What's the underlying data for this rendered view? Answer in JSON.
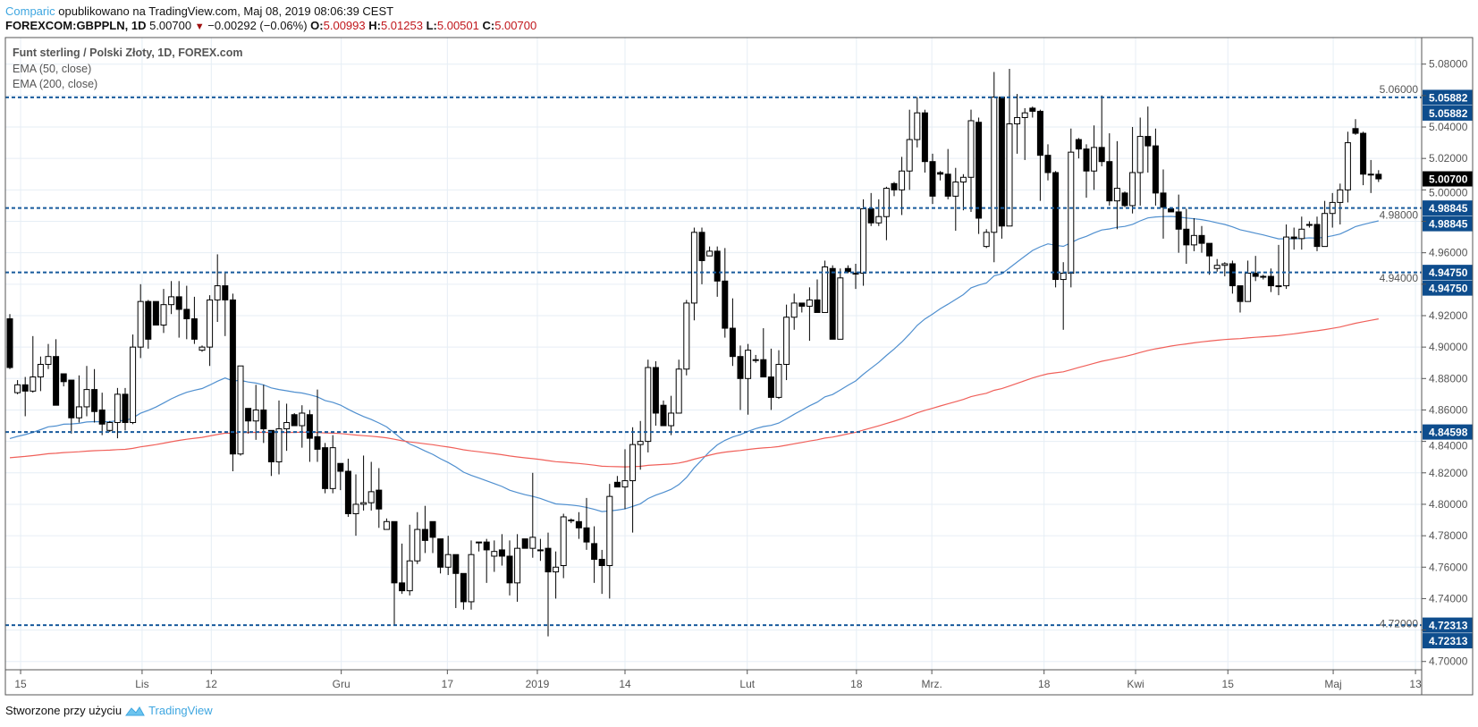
{
  "header": {
    "author": "Comparic",
    "published": "opublikowano na TradingView.com, Maj 08, 2019 08:06:39 CEST",
    "symbol": "FOREXCOM:GBPPLN, 1D",
    "last": "5.00700",
    "change": "−0.00292 (−0.06%)",
    "o_label": "O:",
    "o": "5.00993",
    "h_label": "H:",
    "h": "5.01253",
    "l_label": "L:",
    "l": "5.00501",
    "c_label": "C:",
    "c": "5.00700",
    "down_icon": "triangle-down-icon"
  },
  "legend": {
    "title": "Funt sterling / Polski Złoty, 1D, FOREX.com",
    "ema50": "EMA (50, close)",
    "ema200": "EMA (200, close)"
  },
  "footer": {
    "text": "Stworzone przy użyciu",
    "brand": "TradingView",
    "logo_icon": "tradingview-logo-icon"
  },
  "colors": {
    "level": "#175a9c",
    "level_label": "#0e4d8d",
    "ema50": "#4f8fcf",
    "ema200": "#f0605a",
    "grid": "#e6eef5",
    "brand": "#3ea6e0",
    "down": "#c0161b"
  },
  "chart_data": {
    "type": "candlestick",
    "title": "Funt sterling / Polski Złoty, 1D, FOREX.com",
    "ylim": [
      4.7,
      5.08
    ],
    "y_ticks": [
      "5.08000",
      "5.06000",
      "5.04000",
      "5.02000",
      "5.00000",
      "4.98000",
      "4.96000",
      "4.94000",
      "4.92000",
      "4.90000",
      "4.88000",
      "4.86000",
      "4.84000",
      "4.82000",
      "4.80000",
      "4.78000",
      "4.76000",
      "4.74000",
      "4.72000",
      "4.70000"
    ],
    "x_ticks": [
      {
        "label": "15",
        "index": 1.4
      },
      {
        "label": "Lis",
        "index": 17.2
      },
      {
        "label": "12",
        "index": 26.2
      },
      {
        "label": "Gru",
        "index": 43.1
      },
      {
        "label": "17",
        "index": 56.9
      },
      {
        "label": "2019",
        "index": 68.6
      },
      {
        "label": "14",
        "index": 80
      },
      {
        "label": "Lut",
        "index": 95.9
      },
      {
        "label": "18",
        "index": 110.1
      },
      {
        "label": "Mrz.",
        "index": 119.9
      },
      {
        "label": "18",
        "index": 134.5
      },
      {
        "label": "Kwi",
        "index": 146.4
      },
      {
        "label": "15",
        "index": 158.4
      },
      {
        "label": "Maj",
        "index": 172.1
      },
      {
        "label": "13",
        "index": 182.8
      }
    ],
    "levels": [
      {
        "value": 5.05882,
        "label": "5.05882",
        "labels": 2
      },
      {
        "value": 4.98845,
        "label": "4.98845",
        "labels": 2
      },
      {
        "value": 4.9475,
        "label": "4.94750",
        "labels": 2
      },
      {
        "value": 4.84598,
        "label": "4.84598",
        "labels": 1
      },
      {
        "value": 4.72313,
        "label": "4.72313",
        "labels": 2
      }
    ],
    "current_price": {
      "value": 5.007,
      "label": "5.00700"
    },
    "ema": [
      {
        "name": "EMA (50, close)",
        "period": 50,
        "start": 4.84
      },
      {
        "name": "EMA (200, close)",
        "period": 200,
        "start": 4.829
      }
    ],
    "ohlc": [
      [
        4.918,
        4.921,
        4.886,
        4.887
      ],
      [
        4.871,
        4.879,
        4.87,
        4.876
      ],
      [
        4.876,
        4.881,
        4.856,
        4.872
      ],
      [
        4.872,
        4.907,
        4.871,
        4.881
      ],
      [
        4.881,
        4.894,
        4.872,
        4.889
      ],
      [
        4.889,
        4.902,
        4.886,
        4.894
      ],
      [
        4.894,
        4.905,
        4.863,
        4.863
      ],
      [
        4.883,
        4.883,
        4.875,
        4.878
      ],
      [
        4.879,
        4.879,
        4.845,
        4.855
      ],
      [
        4.855,
        4.882,
        4.852,
        4.862
      ],
      [
        4.862,
        4.888,
        4.856,
        4.873
      ],
      [
        4.873,
        4.886,
        4.852,
        4.859
      ],
      [
        4.86,
        4.871,
        4.844,
        4.851
      ],
      [
        4.847,
        4.853,
        4.846,
        4.852
      ],
      [
        4.852,
        4.874,
        4.842,
        4.87
      ],
      [
        4.87,
        4.874,
        4.847,
        4.852
      ],
      [
        4.852,
        4.908,
        4.851,
        4.9
      ],
      [
        4.9,
        4.94,
        4.893,
        4.929
      ],
      [
        4.929,
        4.93,
        4.899,
        4.905
      ],
      [
        4.929,
        4.929,
        4.914,
        4.914
      ],
      [
        4.914,
        4.937,
        4.909,
        4.927
      ],
      [
        4.927,
        4.942,
        4.921,
        4.932
      ],
      [
        4.932,
        4.942,
        4.906,
        4.924
      ],
      [
        4.924,
        4.939,
        4.905,
        4.918
      ],
      [
        4.918,
        4.932,
        4.902,
        4.905
      ],
      [
        4.898,
        4.901,
        4.897,
        4.9
      ],
      [
        4.9,
        4.933,
        4.888,
        4.93
      ],
      [
        4.93,
        4.959,
        4.916,
        4.939
      ],
      [
        4.939,
        4.948,
        4.907,
        4.93
      ],
      [
        4.93,
        4.934,
        4.821,
        4.832
      ],
      [
        4.832,
        4.888,
        4.831,
        4.888
      ],
      [
        4.861,
        4.861,
        4.845,
        4.853
      ],
      [
        4.853,
        4.876,
        4.841,
        4.86
      ],
      [
        4.86,
        4.876,
        4.839,
        4.848
      ],
      [
        4.847,
        4.847,
        4.818,
        4.827
      ],
      [
        4.827,
        4.866,
        4.819,
        4.848
      ],
      [
        4.848,
        4.864,
        4.834,
        4.852
      ],
      [
        4.857,
        4.858,
        4.85,
        4.85
      ],
      [
        4.85,
        4.863,
        4.836,
        4.858
      ],
      [
        4.857,
        4.86,
        4.827,
        4.842
      ],
      [
        4.843,
        4.873,
        4.827,
        4.835
      ],
      [
        4.836,
        4.839,
        4.807,
        4.81
      ],
      [
        4.81,
        4.844,
        4.807,
        4.836
      ],
      [
        4.826,
        4.826,
        4.809,
        4.821
      ],
      [
        4.821,
        4.829,
        4.792,
        4.794
      ],
      [
        4.794,
        4.819,
        4.78,
        4.8
      ],
      [
        4.8,
        4.831,
        4.796,
        4.801
      ],
      [
        4.801,
        4.827,
        4.796,
        4.808
      ],
      [
        4.809,
        4.823,
        4.785,
        4.797
      ],
      [
        4.784,
        4.791,
        4.784,
        4.789
      ],
      [
        4.789,
        4.789,
        4.723,
        4.75
      ],
      [
        4.75,
        4.775,
        4.743,
        4.745
      ],
      [
        4.745,
        4.787,
        4.742,
        4.764
      ],
      [
        4.764,
        4.795,
        4.762,
        4.784
      ],
      [
        4.784,
        4.799,
        4.769,
        4.777
      ],
      [
        4.789,
        4.789,
        4.769,
        4.779
      ],
      [
        4.778,
        4.778,
        4.756,
        4.76
      ],
      [
        4.76,
        4.78,
        4.755,
        4.768
      ],
      [
        4.768,
        4.768,
        4.734,
        4.756
      ],
      [
        4.756,
        4.756,
        4.733,
        4.738
      ],
      [
        4.738,
        4.777,
        4.733,
        4.768
      ],
      [
        4.776,
        4.776,
        4.77,
        4.776
      ],
      [
        4.776,
        4.778,
        4.75,
        4.771
      ],
      [
        4.767,
        4.777,
        4.757,
        4.77
      ],
      [
        4.771,
        4.781,
        4.761,
        4.767
      ],
      [
        4.767,
        4.777,
        4.742,
        4.75
      ],
      [
        4.75,
        4.781,
        4.738,
        4.772
      ],
      [
        4.778,
        4.778,
        4.772,
        4.772
      ],
      [
        4.772,
        4.82,
        4.766,
        4.779
      ],
      [
        4.771,
        4.778,
        4.764,
        4.771
      ],
      [
        4.772,
        4.782,
        4.716,
        4.757
      ],
      [
        4.757,
        4.77,
        4.74,
        4.76
      ],
      [
        4.761,
        4.794,
        4.753,
        4.792
      ],
      [
        4.79,
        4.791,
        4.788,
        4.79
      ],
      [
        4.789,
        4.795,
        4.778,
        4.785
      ],
      [
        4.785,
        4.804,
        4.771,
        4.776
      ],
      [
        4.775,
        4.786,
        4.75,
        4.765
      ],
      [
        4.765,
        4.771,
        4.743,
        4.761
      ],
      [
        4.761,
        4.813,
        4.74,
        4.805
      ],
      [
        4.814,
        4.818,
        4.811,
        4.811
      ],
      [
        4.811,
        4.835,
        4.797,
        4.815
      ],
      [
        4.815,
        4.849,
        4.782,
        4.838
      ],
      [
        4.838,
        4.853,
        4.822,
        4.84
      ],
      [
        4.84,
        4.892,
        4.833,
        4.887
      ],
      [
        4.887,
        4.891,
        4.85,
        4.858
      ],
      [
        4.863,
        4.866,
        4.85,
        4.85
      ],
      [
        4.85,
        4.869,
        4.844,
        4.858
      ],
      [
        4.858,
        4.892,
        4.858,
        4.886
      ],
      [
        4.886,
        4.93,
        4.882,
        4.928
      ],
      [
        4.928,
        4.976,
        4.917,
        4.973
      ],
      [
        4.973,
        4.976,
        4.94,
        4.955
      ],
      [
        4.958,
        4.964,
        4.958,
        4.961
      ],
      [
        4.961,
        4.964,
        4.932,
        4.942
      ],
      [
        4.942,
        4.963,
        4.906,
        4.912
      ],
      [
        4.912,
        4.931,
        4.888,
        4.894
      ],
      [
        4.894,
        4.901,
        4.86,
        4.88
      ],
      [
        4.88,
        4.902,
        4.857,
        4.898
      ],
      [
        4.892,
        4.895,
        4.89,
        4.892
      ],
      [
        4.892,
        4.912,
        4.881,
        4.881
      ],
      [
        4.881,
        4.899,
        4.86,
        4.868
      ],
      [
        4.868,
        4.898,
        4.867,
        4.889
      ],
      [
        4.889,
        4.927,
        4.879,
        4.919
      ],
      [
        4.919,
        4.934,
        4.911,
        4.928
      ],
      [
        4.928,
        4.928,
        4.922,
        4.926
      ],
      [
        4.926,
        4.938,
        4.904,
        4.93
      ],
      [
        4.93,
        4.943,
        4.922,
        4.922
      ],
      [
        4.922,
        4.955,
        4.922,
        4.951
      ],
      [
        4.95,
        4.952,
        4.905,
        4.905
      ],
      [
        4.905,
        4.95,
        4.905,
        4.944
      ],
      [
        4.95,
        4.952,
        4.947,
        4.948
      ],
      [
        4.947,
        4.953,
        4.937,
        4.947
      ],
      [
        4.947,
        4.994,
        4.939,
        4.988
      ],
      [
        4.988,
        4.998,
        4.977,
        4.979
      ],
      [
        4.979,
        4.994,
        4.977,
        4.983
      ],
      [
        4.983,
        5.002,
        4.968,
        5.001
      ],
      [
        5.004,
        5.005,
        4.996,
        5.0
      ],
      [
        5.0,
        5.021,
        4.984,
        5.012
      ],
      [
        5.012,
        5.051,
        5.0,
        5.032
      ],
      [
        5.032,
        5.059,
        5.027,
        5.049
      ],
      [
        5.049,
        5.051,
        5.011,
        5.018
      ],
      [
        5.018,
        5.023,
        4.991,
        4.996
      ],
      [
        5.011,
        5.012,
        5.006,
        5.01
      ],
      [
        5.01,
        5.026,
        4.994,
        4.996
      ],
      [
        4.996,
        5.014,
        4.974,
        5.005
      ],
      [
        5.005,
        5.01,
        4.987,
        5.008
      ],
      [
        5.008,
        5.051,
        4.986,
        5.044
      ],
      [
        5.043,
        5.046,
        4.972,
        4.982
      ],
      [
        4.964,
        4.975,
        4.963,
        4.973
      ],
      [
        4.973,
        5.075,
        4.954,
        5.059
      ],
      [
        5.059,
        5.059,
        4.969,
        4.977
      ],
      [
        4.977,
        5.077,
        4.977,
        5.042
      ],
      [
        5.042,
        5.061,
        5.023,
        5.046
      ],
      [
        5.046,
        5.052,
        5.019,
        5.049
      ],
      [
        5.052,
        5.053,
        5.046,
        5.05
      ],
      [
        5.05,
        5.051,
        4.993,
        5.022
      ],
      [
        5.022,
        5.029,
        5.006,
        5.011
      ],
      [
        5.011,
        5.012,
        4.938,
        4.943
      ],
      [
        4.943,
        4.954,
        4.911,
        4.947
      ],
      [
        4.947,
        5.039,
        4.938,
        5.024
      ],
      [
        5.032,
        5.033,
        5.02,
        5.026
      ],
      [
        5.026,
        5.029,
        4.995,
        5.012
      ],
      [
        5.012,
        5.041,
        5.0,
        5.027
      ],
      [
        5.027,
        5.06,
        5.015,
        5.018
      ],
      [
        5.018,
        5.036,
        4.99,
        4.993
      ],
      [
        4.993,
        5.031,
        4.975,
        5.001
      ],
      [
        4.998,
        4.999,
        4.989,
        4.99
      ],
      [
        4.99,
        5.04,
        4.985,
        5.011
      ],
      [
        5.011,
        5.046,
        4.99,
        5.034
      ],
      [
        5.034,
        5.053,
        5.011,
        5.028
      ],
      [
        5.028,
        5.039,
        4.99,
        4.998
      ],
      [
        4.998,
        5.013,
        4.969,
        4.989
      ],
      [
        4.988,
        4.989,
        4.986,
        4.986
      ],
      [
        4.986,
        4.997,
        4.96,
        4.975
      ],
      [
        4.975,
        4.988,
        4.953,
        4.965
      ],
      [
        4.965,
        4.982,
        4.961,
        4.971
      ],
      [
        4.971,
        4.977,
        4.96,
        4.966
      ],
      [
        4.966,
        4.966,
        4.946,
        4.958
      ],
      [
        4.95,
        4.956,
        4.948,
        4.952
      ],
      [
        4.952,
        4.954,
        4.945,
        4.953
      ],
      [
        4.953,
        4.955,
        4.934,
        4.939
      ],
      [
        4.939,
        4.939,
        4.922,
        4.929
      ],
      [
        4.929,
        4.955,
        4.929,
        4.947
      ],
      [
        4.947,
        4.958,
        4.942,
        4.945
      ],
      [
        4.945,
        4.946,
        4.943,
        4.945
      ],
      [
        4.945,
        4.95,
        4.935,
        4.939
      ],
      [
        4.939,
        4.965,
        4.933,
        4.939
      ],
      [
        4.939,
        4.978,
        4.937,
        4.97
      ],
      [
        4.97,
        4.976,
        4.962,
        4.969
      ],
      [
        4.969,
        4.983,
        4.962,
        4.975
      ],
      [
        4.978,
        4.98,
        4.976,
        4.978
      ],
      [
        4.978,
        4.983,
        4.961,
        4.964
      ],
      [
        4.964,
        4.993,
        4.964,
        4.985
      ],
      [
        4.985,
        4.998,
        4.976,
        4.992
      ],
      [
        4.992,
        5.004,
        4.978,
        5.0
      ],
      [
        5.0,
        5.037,
        4.992,
        5.03
      ],
      [
        5.039,
        5.045,
        5.035,
        5.036
      ],
      [
        5.036,
        5.037,
        5.003,
        5.01
      ],
      [
        5.01,
        5.019,
        4.998,
        5.01
      ],
      [
        5.00993,
        5.01253,
        5.00501,
        5.007
      ]
    ]
  }
}
